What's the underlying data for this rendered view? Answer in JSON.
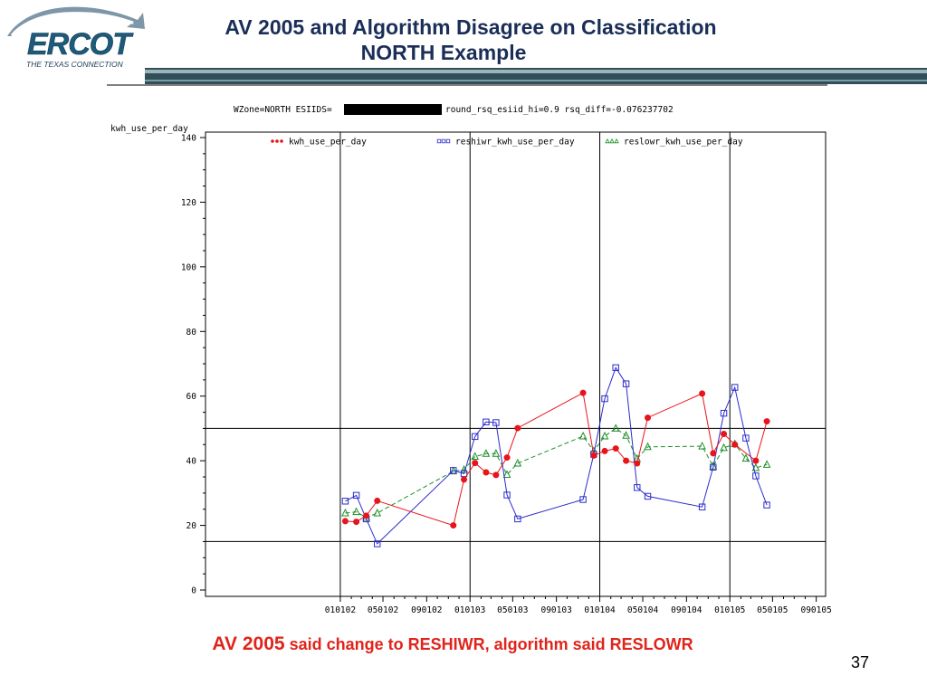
{
  "slide": {
    "title_line1": "AV 2005 and Algorithm Disagree on Classification",
    "title_line2": "NORTH Example",
    "caption_big": "AV 2005",
    "caption_small": " said change to RESHIWR, algorithm said RESLOWR",
    "page_number": "37"
  },
  "logo": {
    "name": "ERCOT",
    "tagline": "THE TEXAS CONNECTION"
  },
  "colors": {
    "title": "#1a2e57",
    "caption": "#e0241b",
    "band_dark": "#2f4f59",
    "band_light": "#9fb3b9",
    "kwh": "#e8141c",
    "reshiwr": "#2c2ccc",
    "reslowr": "#1f8f2a"
  },
  "chart_data": {
    "type": "line",
    "title_prefix": "WZone=NORTH ESIIDS=",
    "title_suffix": "round_rsq_esiid_hi=0.9 rsq_diff=-0.076237702",
    "ylabel": "kwh_use_per_day",
    "ylim": [
      0,
      140
    ],
    "yticks": [
      0,
      20,
      40,
      60,
      80,
      100,
      120,
      140
    ],
    "xlim": [
      "2001-01-02",
      "2005-09-07"
    ],
    "xtick_labels": [
      "010102",
      "050102",
      "090102",
      "010103",
      "050103",
      "090103",
      "010104",
      "050104",
      "090104",
      "010105",
      "050105",
      "090105"
    ],
    "xtick_dates": [
      "2002-01-01",
      "2002-05-01",
      "2002-09-01",
      "2003-01-01",
      "2003-05-01",
      "2003-09-01",
      "2004-01-01",
      "2004-05-01",
      "2004-09-01",
      "2005-01-01",
      "2005-05-01",
      "2005-09-01"
    ],
    "vertical_reference_dates": [
      "2002-01-01",
      "2003-01-01",
      "2004-01-01",
      "2005-01-01"
    ],
    "horizontal_reference_values": [
      50,
      15
    ],
    "legend_placement": "top",
    "series": [
      {
        "name": "kwh_use_per_day",
        "marker": "dot",
        "line": "solid",
        "points": [
          [
            "2002-01-15",
            21.3
          ],
          [
            "2002-02-15",
            21.1
          ],
          [
            "2002-03-15",
            23
          ],
          [
            "2002-04-15",
            27.6
          ],
          [
            "2002-11-15",
            20
          ],
          [
            "2002-12-15",
            34.2
          ],
          [
            "2003-01-15",
            39.3
          ],
          [
            "2003-02-15",
            36.4
          ],
          [
            "2003-03-15",
            35.6
          ],
          [
            "2003-04-15",
            41
          ],
          [
            "2003-05-15",
            50.1
          ],
          [
            "2003-11-15",
            61
          ],
          [
            "2003-12-15",
            41.6
          ],
          [
            "2004-01-15",
            43
          ],
          [
            "2004-02-15",
            43.8
          ],
          [
            "2004-03-15",
            40
          ],
          [
            "2004-04-15",
            39.2
          ],
          [
            "2004-05-15",
            53.3
          ],
          [
            "2004-10-15",
            60.8
          ],
          [
            "2004-11-15",
            42.3
          ],
          [
            "2004-12-15",
            48.3
          ],
          [
            "2005-01-15",
            45
          ],
          [
            "2005-03-15",
            40
          ],
          [
            "2005-04-15",
            52.2
          ]
        ]
      },
      {
        "name": "reshiwr_kwh_use_per_day",
        "marker": "square",
        "line": "solid",
        "points": [
          [
            "2002-01-15",
            27.5
          ],
          [
            "2002-02-15",
            29.3
          ],
          [
            "2002-03-15",
            22
          ],
          [
            "2002-04-15",
            14.3
          ],
          [
            "2002-11-15",
            37
          ],
          [
            "2002-12-15",
            36
          ],
          [
            "2003-01-15",
            47.5
          ],
          [
            "2003-02-15",
            52
          ],
          [
            "2003-03-15",
            51.8
          ],
          [
            "2003-04-15",
            29.4
          ],
          [
            "2003-05-15",
            22
          ],
          [
            "2003-11-15",
            28
          ],
          [
            "2003-12-15",
            42
          ],
          [
            "2004-01-15",
            59.2
          ],
          [
            "2004-02-15",
            68.8
          ],
          [
            "2004-03-15",
            63.8
          ],
          [
            "2004-04-15",
            31.7
          ],
          [
            "2004-05-15",
            29
          ],
          [
            "2004-10-15",
            25.7
          ],
          [
            "2004-11-15",
            38
          ],
          [
            "2004-12-15",
            54.7
          ],
          [
            "2005-01-15",
            62.7
          ],
          [
            "2005-02-15",
            47
          ],
          [
            "2005-03-15",
            35.3
          ],
          [
            "2005-04-15",
            26.3
          ]
        ]
      },
      {
        "name": "reslowr_kwh_use_per_day",
        "marker": "triangle",
        "line": "dashed",
        "points": [
          [
            "2002-01-15",
            23.8
          ],
          [
            "2002-02-15",
            24.2
          ],
          [
            "2002-03-15",
            22.4
          ],
          [
            "2002-04-15",
            23.8
          ],
          [
            "2002-11-15",
            36.8
          ],
          [
            "2002-12-15",
            37.2
          ],
          [
            "2003-01-15",
            41.3
          ],
          [
            "2003-02-15",
            42.2
          ],
          [
            "2003-03-15",
            42.2
          ],
          [
            "2003-04-15",
            35.7
          ],
          [
            "2003-05-15",
            39.2
          ],
          [
            "2003-11-15",
            47.6
          ],
          [
            "2003-12-15",
            43
          ],
          [
            "2004-01-15",
            47.6
          ],
          [
            "2004-02-15",
            50
          ],
          [
            "2004-03-15",
            47.8
          ],
          [
            "2004-04-15",
            40.6
          ],
          [
            "2004-05-15",
            44.3
          ],
          [
            "2004-10-15",
            44.5
          ],
          [
            "2004-11-15",
            38.3
          ],
          [
            "2004-12-15",
            44
          ],
          [
            "2005-01-15",
            45.2
          ],
          [
            "2005-02-15",
            40.7
          ],
          [
            "2005-03-15",
            37.8
          ],
          [
            "2005-04-15",
            38.8
          ]
        ]
      }
    ]
  }
}
